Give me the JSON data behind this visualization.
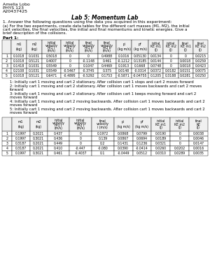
{
  "header_lines": [
    "Amelia Lobo",
    "PHYS 123",
    "A20437425"
  ],
  "title": "Lab 5: Momentum Lab",
  "question_text": "1. Answer the following questions using the data you acquired in this experiment:",
  "part_a_lines": [
    "(a) For the two experiments, create data tables for the different cart masses (M1, M2), the initial",
    "cart velocities, the final velocities, the initial and final momentums and kinetic energies. Give a",
    "brief description of the collisions."
  ],
  "part1_label": "Part 1:",
  "part1_col_headers": [
    "",
    "m1\n(kg)",
    "m2\n(kg)",
    "initial\nvelocity\nm1 i\n(m/s)",
    "initial\nvelocity\nm2 i\n(m/s)",
    "final\nvelocity\nm1 k\n(m/s)",
    "final\nvelocity\nm2 k\n(m/s)",
    "pi\n(kg m/s)",
    "pf\n(kg m/s)",
    "initial\nKE m1\n(J)",
    "initial\nKE m2\n(J)",
    "final\nKE m1\n(J)",
    "final\nKE m2\n(J)"
  ],
  "part1_rows": [
    [
      "1",
      "0.1018",
      "0.1031",
      "0.5018",
      "0",
      "0",
      "0.4988",
      "0.1016",
      "0.05130",
      "0.0134",
      "0",
      "0",
      "0.0215"
    ],
    [
      "2",
      "0.1018",
      "0.5121",
      "0.4007",
      "0",
      "-0.1148",
      "0.461",
      "-0.1212",
      "0.13185",
      "0.0144",
      "0",
      "0.0018",
      "0.0259"
    ],
    [
      "3",
      "0.1418",
      "0.1031",
      "0.5549",
      "0",
      "0.1047",
      "0.4469",
      "0.1913",
      "0.1668",
      "0.0748",
      "0",
      "0.0018",
      "0.0423"
    ],
    [
      "4",
      "0.2108",
      "0.1031",
      "0.5549",
      "-0.5467",
      "-0.3745",
      "0.375",
      "0.0148",
      "-0.0314",
      "0.0372",
      "0.0182",
      "0.0151",
      "0.0075"
    ],
    [
      "5",
      "0.1018",
      "0.5121",
      "0.6471",
      "-0.4895",
      "-0.5292",
      "0.1753",
      "-0.5871",
      "-0.04755",
      "0.1205",
      "0.3188",
      "0.0281",
      "0.0250"
    ]
  ],
  "part1_descriptions": [
    "1: Initially cart 1 moving and cart 2 stationary. After collision cart 1 stops and cart 2 moves forward",
    "2: Initially cart 1 moving and cart 2 stationary. After collision cart 1 moves backwards and cart 2 moves\nforward",
    "3: Initially cart 1 moving and cart 2 stationary. After collision cart 1 keeps moving forward and cart 2\nmoves forward",
    "4: Initially cart 1 moving and cart 2 moving backwards. After collision cart 1 moves backwards and cart 2\nmoves forward",
    "5: Initially cart 1 moving and cart 2 moving backwards. After collision cart 1 moves backwards and cart 2\nmoves forward"
  ],
  "part2_col_headers": [
    "",
    "m1\n(kg)",
    "m2\n(kg)",
    "initial\nvelocity\nm1 i\n(m/s)",
    "initial\nvelocity\nm2 i\n(m/s)",
    "final\nvelocity\ni (m/s)",
    "pi\n(kg m/s)",
    "pf\n(kg m/s)",
    "initial\nKE m1\n(J)",
    "initial\nKE m2\n(J)",
    "final\nKE\n(J)"
  ],
  "part2_rows": [
    [
      "1",
      "0.1997",
      "0.2021",
      "0.437",
      "0",
      "0.1972",
      "0.0868",
      "0.0799",
      "0.0190",
      "0",
      "0.0038"
    ],
    [
      "2",
      "0.1997",
      "0.3021",
      "0.436",
      "0",
      "0.139",
      "0.0867",
      "0.0694",
      "0.0189",
      "0",
      "0.0046"
    ],
    [
      "3",
      "0.3187",
      "0.2021",
      "0.449",
      "0",
      "0.2",
      "0.1431",
      "0.1236",
      "0.0321",
      "0",
      "0.0147"
    ],
    [
      "4",
      "0.3187",
      "0.2021",
      "0.410",
      "-0.447",
      "-0.080",
      "0.0390",
      "-0.0414",
      "0.0260",
      "0.0202",
      "0.0016"
    ],
    [
      "5",
      "0.1997",
      "0.3021",
      "0.461",
      "-0.4037",
      "0.1",
      "-0.0449",
      "0.0512",
      "0.0310",
      "0.0289",
      "0.0035"
    ]
  ],
  "bg_color": "#ffffff",
  "text_color": "#000000",
  "header_cell_color": "#f0f0f0"
}
